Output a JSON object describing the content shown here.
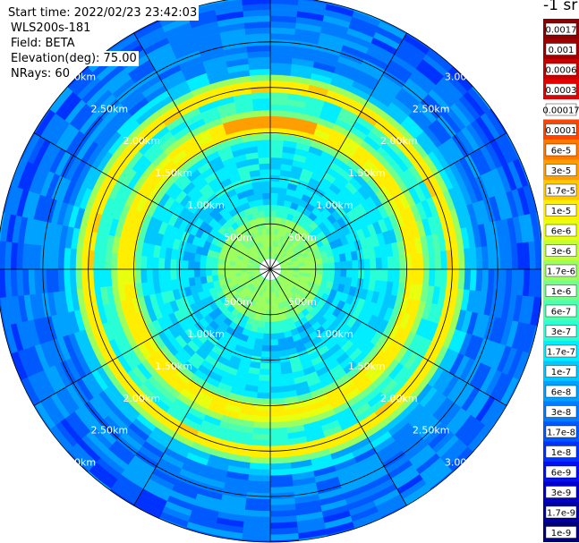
{
  "header": {
    "start_time": "Start time: 2022/02/23 23:42:03",
    "instrument": "WLS200s-181",
    "field": "Field: BETA",
    "elevation": "Elevation(deg): 75.00",
    "nrays": "NRays: 60"
  },
  "colorbar": {
    "units": "-1 sr",
    "labels": [
      "0.0017",
      "0.001",
      "0.0006",
      "0.0003",
      "0.00017",
      "0.0001",
      "6e-5",
      "3e-5",
      "1.7e-5",
      "1e-5",
      "6e-6",
      "3e-6",
      "1.7e-6",
      "1e-6",
      "6e-7",
      "3e-7",
      "1.7e-7",
      "1e-7",
      "6e-8",
      "3e-8",
      "1.7e-8",
      "1e-8",
      "6e-9",
      "3e-9",
      "1.7e-9",
      "1e-9"
    ],
    "colors": [
      "#8b0000",
      "#a00000",
      "#c80000",
      "#e60000",
      "#ffffff",
      "#ff4600",
      "#ff7800",
      "#ff9e00",
      "#ffc800",
      "#ffee00",
      "#e8ff10",
      "#c2ff3a",
      "#9cff60",
      "#74ff8a",
      "#4effb0",
      "#28ffd6",
      "#00eeff",
      "#00c8ff",
      "#00a2ff",
      "#007cff",
      "#0058ff",
      "#0032ff",
      "#0010f0",
      "#0000c8",
      "#0000a0",
      "#00007a"
    ]
  },
  "chart_data": {
    "type": "heatmap",
    "projection": "polar (PPI)",
    "field": "BETA",
    "elevation_deg": 75.0,
    "nrays": 60,
    "range_rings_km": [
      0.5,
      1.0,
      1.5,
      2.0,
      2.5,
      3.0
    ],
    "range_labels": [
      "500m",
      "1.00km",
      "1.50km",
      "2.00km",
      "2.50km",
      "3.00km"
    ],
    "azimuth_spokes_deg": [
      0,
      30,
      60,
      90,
      120,
      150,
      180,
      210,
      240,
      270,
      300,
      330
    ],
    "max_range_km": 3.0,
    "notable_features": [
      {
        "range_km": [
          1.55,
          1.65
        ],
        "value_approx": "1e-5",
        "description": "bright yellow ring"
      },
      {
        "range_km": [
          1.95,
          2.05
        ],
        "value_approx": "1e-5",
        "description": "bright yellow ring"
      },
      {
        "range_km": [
          2.1,
          2.15
        ],
        "value_approx": "3e-6",
        "description": "outer green ring"
      },
      {
        "range_km": [
          0.0,
          0.6
        ],
        "value_approx": "3e-6",
        "description": "near-field green core"
      }
    ]
  }
}
